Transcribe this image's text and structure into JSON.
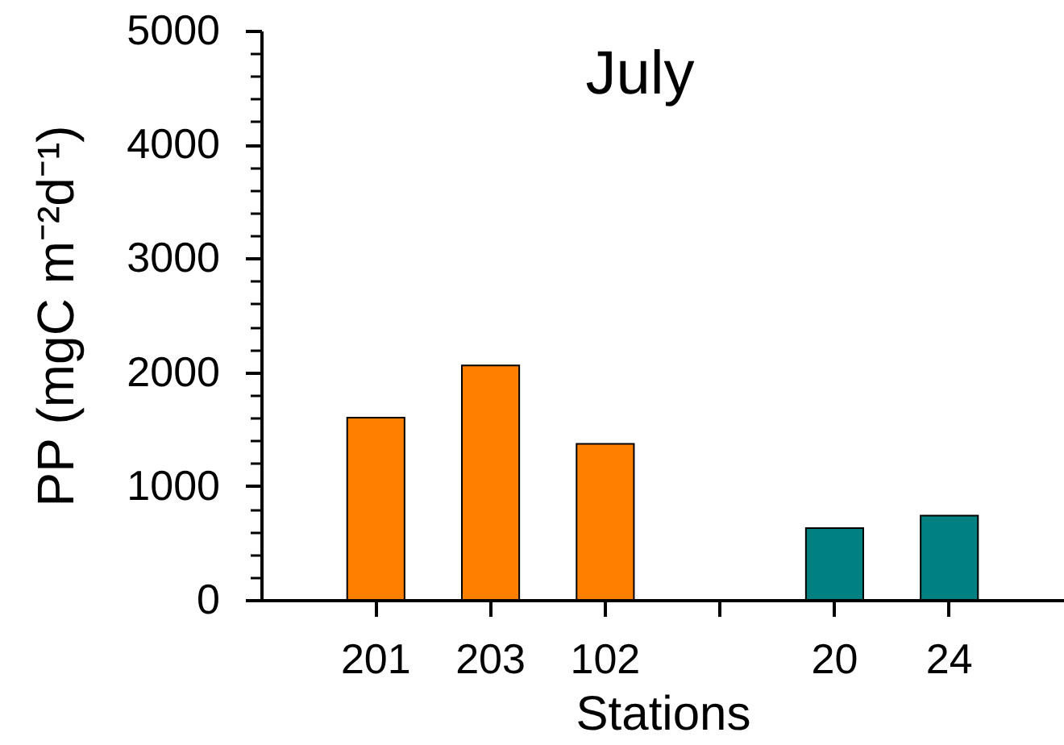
{
  "chart_data": {
    "type": "bar",
    "title": "July",
    "xlabel": "Stations",
    "ylabel": "PP (mgC m⁻²d⁻¹)",
    "categories": [
      "201",
      "203",
      "102",
      null,
      "20",
      "24"
    ],
    "values": [
      1600,
      2060,
      1370,
      null,
      630,
      740
    ],
    "colors": [
      "#ff8000",
      "#ff8000",
      "#ff8000",
      null,
      "#008080",
      "#008080"
    ],
    "ylim": [
      0,
      5000
    ],
    "yticks": [
      0,
      {
        "value": 200,
        "label": null
      },
      {
        "value": 400,
        "label": null
      },
      {
        "value": 600,
        "label": null
      },
      {
        "value": 800,
        "label": null
      },
      1000,
      {
        "value": 1200,
        "label": null
      },
      {
        "value": 1400,
        "label": null
      },
      {
        "value": 1600,
        "label": null
      },
      {
        "value": 1800,
        "label": null
      },
      2000,
      {
        "value": 2200,
        "label": null
      },
      {
        "value": 2400,
        "label": null
      },
      {
        "value": 2600,
        "label": null
      },
      {
        "value": 2800,
        "label": null
      },
      3000,
      {
        "value": 3200,
        "label": null
      },
      {
        "value": 3400,
        "label": null
      },
      {
        "value": 3600,
        "label": null
      },
      {
        "value": 3800,
        "label": null
      },
      4000,
      {
        "value": 4200,
        "label": null
      },
      {
        "value": 4400,
        "label": null
      },
      {
        "value": 4600,
        "label": null
      },
      {
        "value": 4800,
        "label": null
      },
      5000
    ]
  }
}
